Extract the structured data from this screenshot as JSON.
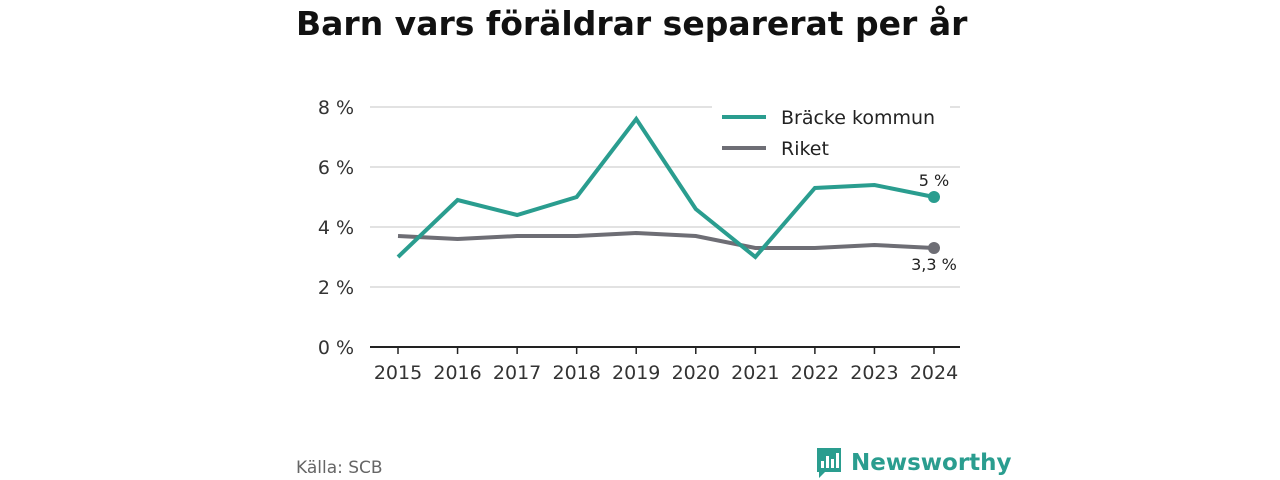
{
  "header": {
    "title": "Barn vars föräldrar separerat per år"
  },
  "footer": {
    "source": "Källa: SCB",
    "brand": "Newsworthy"
  },
  "colors": {
    "brand": "#2a9d8f",
    "riket": "#6e6e75",
    "grid": "#d9d9d9",
    "axis": "#222222"
  },
  "icons": {
    "logo": "bar-chart-bubble-icon"
  },
  "chart_data": {
    "type": "line",
    "x": [
      "2015",
      "2016",
      "2017",
      "2018",
      "2019",
      "2020",
      "2021",
      "2022",
      "2023",
      "2024"
    ],
    "ylim": [
      0,
      8
    ],
    "yticks": [
      0,
      2,
      4,
      6,
      8
    ],
    "ytick_labels": [
      "0 %",
      "2 %",
      "4 %",
      "6 %",
      "8 %"
    ],
    "grid": true,
    "legend_position": "top-right",
    "series": [
      {
        "name": "Bräcke kommun",
        "color": "#2a9d8f",
        "values": [
          3.0,
          4.9,
          4.4,
          5.0,
          7.6,
          4.6,
          3.0,
          5.3,
          5.4,
          5.0
        ],
        "end_label": "5 %"
      },
      {
        "name": "Riket",
        "color": "#6e6e75",
        "values": [
          3.7,
          3.6,
          3.7,
          3.7,
          3.8,
          3.7,
          3.3,
          3.3,
          3.4,
          3.3
        ],
        "end_label": "3,3 %"
      }
    ]
  }
}
